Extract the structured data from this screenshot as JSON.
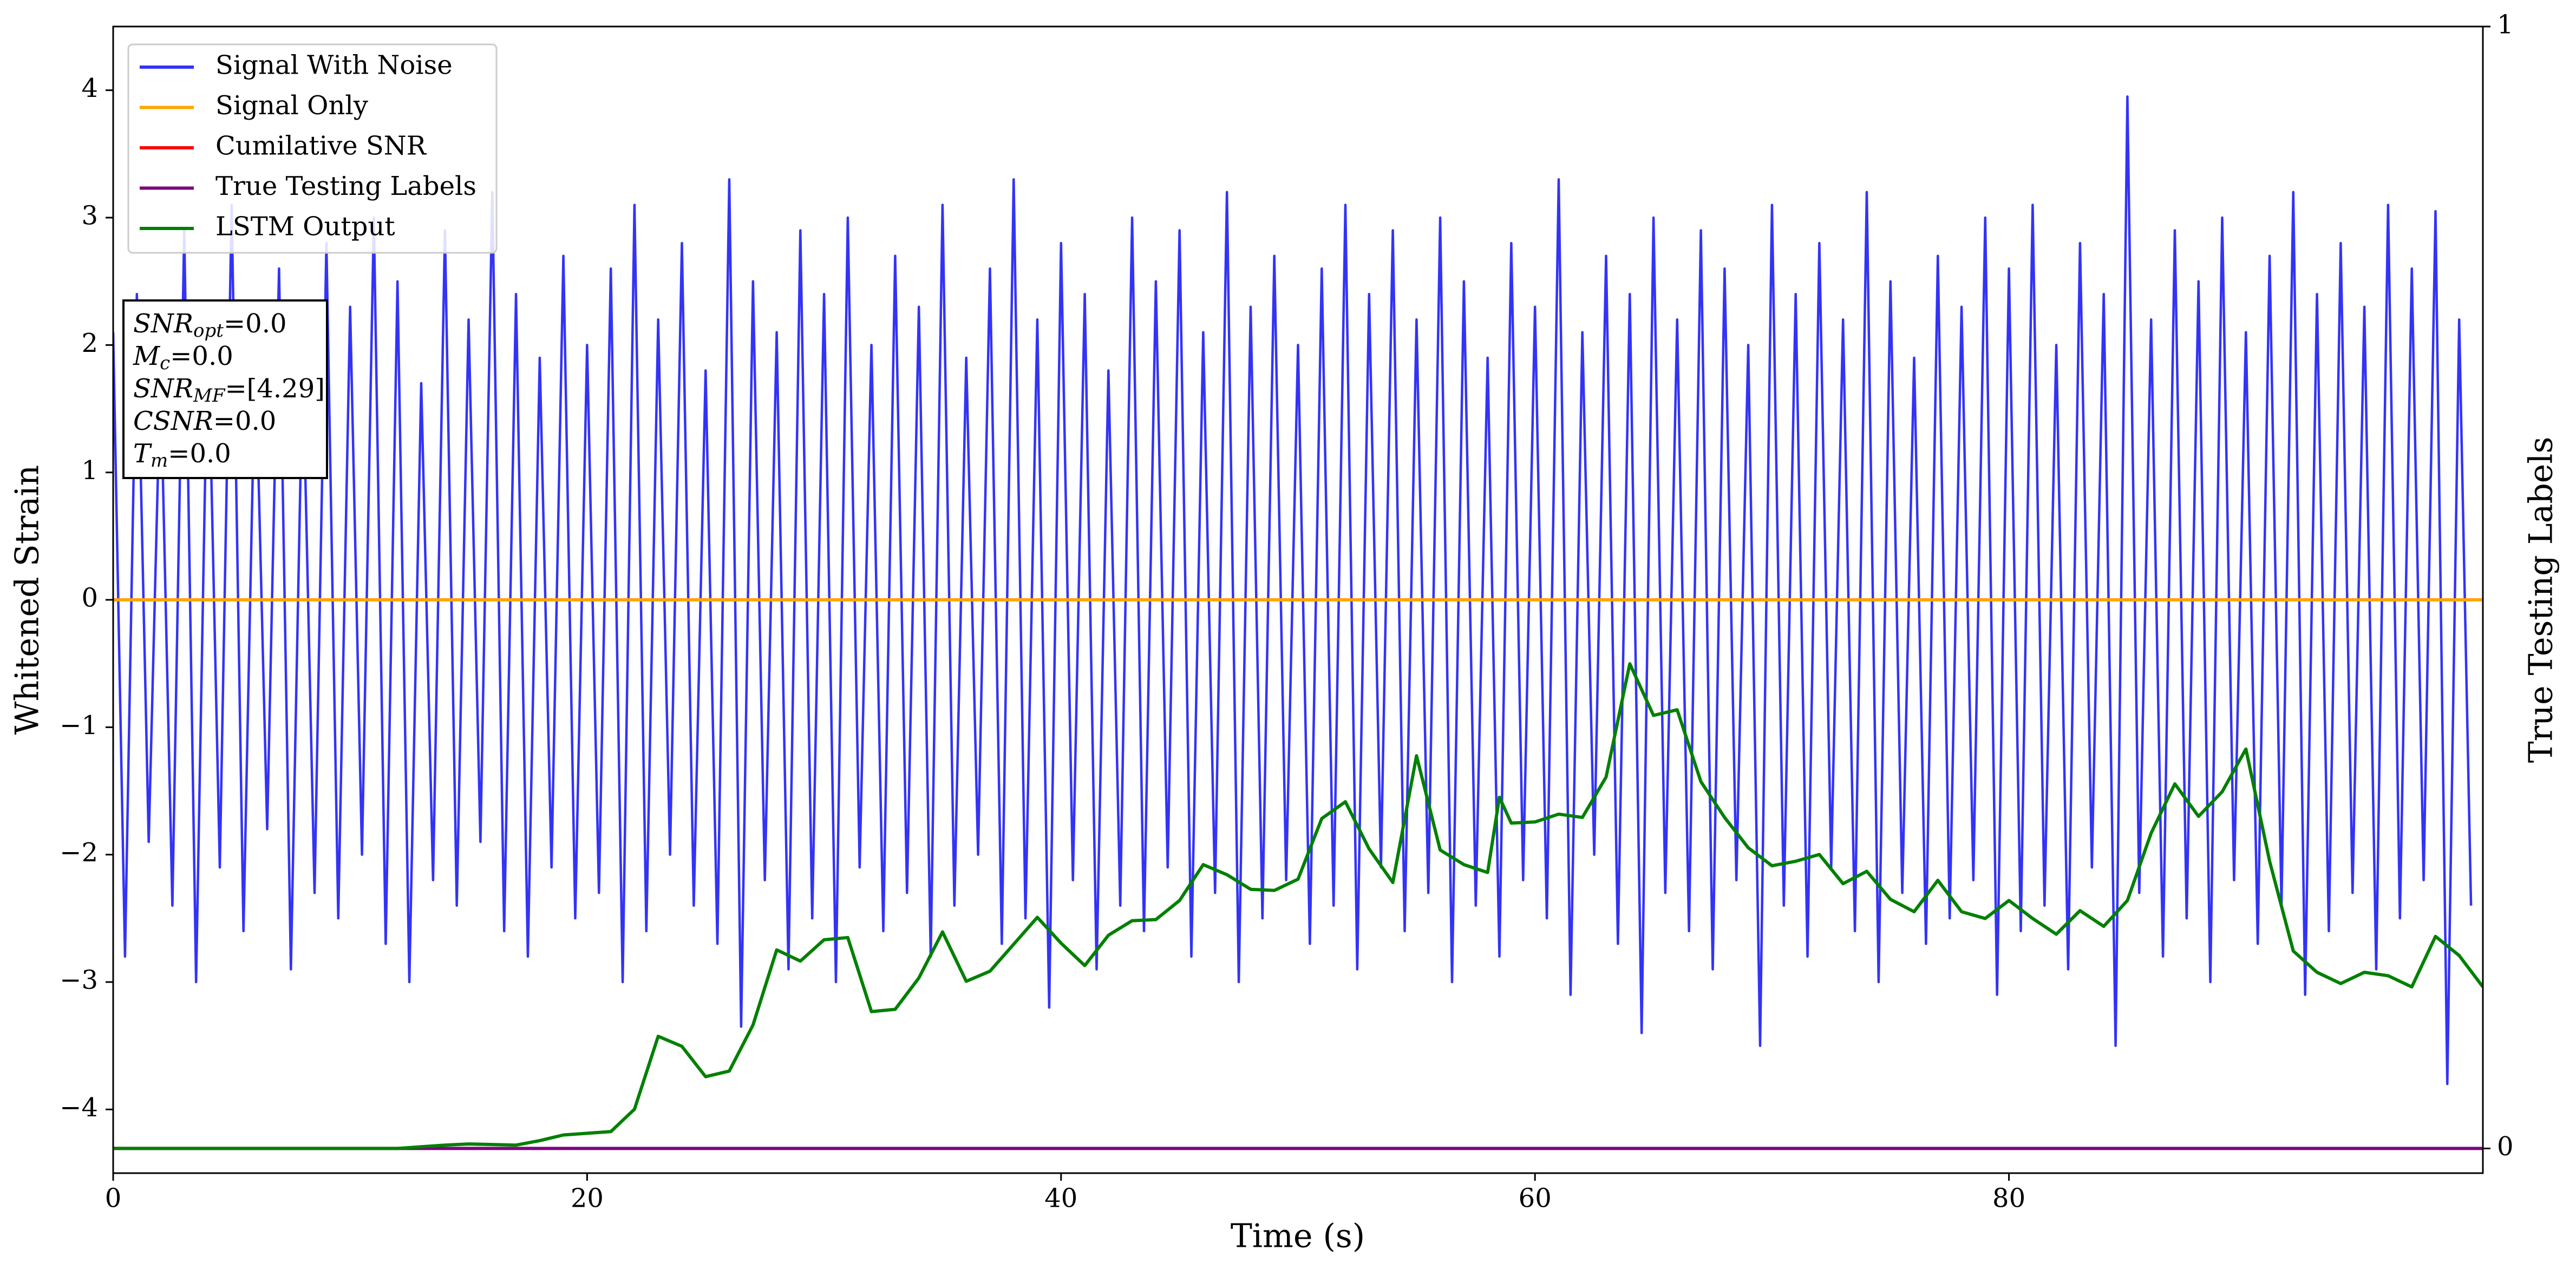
{
  "chart_data": {
    "type": "line",
    "xlabel": "Time (s)",
    "ylabel": "Whitened Strain",
    "y2label": "True Testing Labels",
    "xlim": [
      0,
      100
    ],
    "xticks": [
      0,
      20,
      40,
      60,
      80
    ],
    "ylim": [
      -4.5,
      4.5
    ],
    "yticks": [
      {
        "value": -4,
        "label": "−4"
      },
      {
        "value": -3,
        "label": "−3"
      },
      {
        "value": -2,
        "label": "−2"
      },
      {
        "value": -1,
        "label": "−1"
      },
      0,
      1,
      2,
      3,
      4
    ],
    "y2lim": [
      -0.022,
      1
    ],
    "y2ticks": [
      0,
      1
    ],
    "legend": "upper left",
    "annotation": [
      {
        "base": "SNR",
        "sub": "opt",
        "rest": "=0.0"
      },
      {
        "base": "M",
        "sub": "c",
        "rest": "=0.0"
      },
      {
        "base": "SNR",
        "sub": "MF",
        "rest": "=[4.29]"
      },
      {
        "base": "CSNR",
        "sub": "",
        "rest": "=0.0"
      },
      {
        "base": "T",
        "sub": "m",
        "rest": "=0.0"
      }
    ],
    "series": [
      {
        "name": "Signal With Noise",
        "color": "#3333f8",
        "x": [
          0,
          0.5,
          1,
          1.5,
          2,
          2.5,
          3,
          3.5,
          4,
          4.5,
          5,
          5.5,
          6,
          6.5,
          7,
          7.5,
          8,
          8.5,
          9,
          9.5,
          10,
          10.5,
          11,
          11.5,
          12,
          12.5,
          13,
          13.5,
          14,
          14.5,
          15,
          15.5,
          16,
          16.5,
          17,
          17.5,
          18,
          18.5,
          19,
          19.5,
          20,
          20.5,
          21,
          21.5,
          22,
          22.5,
          23,
          23.5,
          24,
          24.5,
          25,
          25.5,
          26,
          26.5,
          27,
          27.5,
          28,
          28.5,
          29,
          29.5,
          30,
          30.5,
          31,
          31.5,
          32,
          32.5,
          33,
          33.5,
          34,
          34.5,
          35,
          35.5,
          36,
          36.5,
          37,
          37.5,
          38,
          38.5,
          39,
          39.5,
          40,
          40.5,
          41,
          41.5,
          42,
          42.5,
          43,
          43.5,
          44,
          44.5,
          45,
          45.5,
          46,
          46.5,
          47,
          47.5,
          48,
          48.5,
          49,
          49.5,
          50,
          50.5,
          51,
          51.5,
          52,
          52.5,
          53,
          53.5,
          54,
          54.5,
          55,
          55.5,
          56,
          56.5,
          57,
          57.5,
          58,
          58.5,
          59,
          59.5,
          60,
          60.5,
          61,
          61.5,
          62,
          62.5,
          63,
          63.5,
          64,
          64.5,
          65,
          65.5,
          66,
          66.5,
          67,
          67.5,
          68,
          68.5,
          69,
          69.5,
          70,
          70.5,
          71,
          71.5,
          72,
          72.5,
          73,
          73.5,
          74,
          74.5,
          75,
          75.5,
          76,
          76.5,
          77,
          77.5,
          78,
          78.5,
          79,
          79.5,
          80,
          80.5,
          81,
          81.5,
          82,
          82.5,
          83,
          83.5,
          84,
          84.5,
          85,
          85.5,
          86,
          86.5,
          87,
          87.5,
          88,
          88.5,
          89,
          89.5,
          90,
          90.5,
          91,
          91.5,
          92,
          92.5,
          93,
          93.5,
          94,
          94.5,
          95,
          95.5,
          96,
          96.5,
          97,
          97.5,
          98,
          98.5,
          99,
          99.5
        ],
        "values": [
          2.1,
          -2.8,
          2.4,
          -1.9,
          1.8,
          -2.4,
          2.9,
          -3.0,
          2.2,
          -2.1,
          3.1,
          -2.6,
          2.0,
          -1.8,
          2.6,
          -2.9,
          1.9,
          -2.3,
          2.8,
          -2.5,
          2.3,
          -2.0,
          3.0,
          -2.7,
          2.5,
          -3.0,
          1.7,
          -2.2,
          2.9,
          -2.4,
          2.2,
          -1.9,
          3.2,
          -2.6,
          2.4,
          -2.8,
          1.9,
          -2.1,
          2.7,
          -2.5,
          2.0,
          -2.3,
          2.6,
          -3.0,
          3.1,
          -2.6,
          2.2,
          -2.0,
          2.8,
          -2.4,
          1.8,
          -2.7,
          3.3,
          -3.35,
          2.5,
          -2.2,
          2.1,
          -2.9,
          2.9,
          -2.5,
          2.4,
          -3.0,
          3.0,
          -2.1,
          2.0,
          -2.6,
          2.7,
          -2.3,
          2.3,
          -2.8,
          3.1,
          -2.4,
          1.9,
          -2.0,
          2.6,
          -2.7,
          3.3,
          -2.5,
          2.2,
          -3.2,
          2.8,
          -2.2,
          2.4,
          -2.9,
          1.8,
          -2.4,
          3.0,
          -2.6,
          2.5,
          -2.1,
          2.9,
          -2.8,
          2.1,
          -2.3,
          3.2,
          -3.0,
          2.3,
          -2.5,
          2.7,
          -2.2,
          2.0,
          -2.7,
          2.6,
          -2.4,
          3.1,
          -2.9,
          2.4,
          -2.1,
          2.9,
          -2.6,
          2.2,
          -2.3,
          3.0,
          -3.0,
          2.5,
          -2.4,
          1.9,
          -2.8,
          2.8,
          -2.2,
          2.3,
          -2.5,
          3.3,
          -3.1,
          2.1,
          -2.0,
          2.7,
          -2.7,
          2.4,
          -3.4,
          3.0,
          -2.3,
          2.2,
          -2.6,
          2.9,
          -2.9,
          2.6,
          -2.2,
          2.0,
          -3.5,
          3.1,
          -2.4,
          2.4,
          -2.8,
          2.8,
          -2.1,
          2.2,
          -2.6,
          3.2,
          -3.0,
          2.5,
          -2.3,
          1.9,
          -2.7,
          2.7,
          -2.5,
          2.3,
          -2.2,
          3.0,
          -3.1,
          2.6,
          -2.6,
          3.1,
          -2.4,
          2.0,
          -2.9,
          2.8,
          -2.1,
          2.4,
          -3.5,
          3.95,
          -2.3,
          2.2,
          -2.8,
          2.9,
          -2.5,
          2.5,
          -3.0,
          3.0,
          -2.2,
          2.1,
          -2.7,
          2.7,
          -2.4,
          3.2,
          -3.1,
          2.4,
          -2.6,
          2.8,
          -2.3,
          2.3,
          -2.9,
          3.1,
          -2.5,
          2.6,
          -2.2,
          3.05,
          -3.8,
          2.2,
          -2.4
        ]
      },
      {
        "name": "Signal Only",
        "color": "#ffa500",
        "x": [
          0,
          100
        ],
        "values": [
          0,
          0
        ]
      },
      {
        "name": "Cumilative SNR",
        "color": "#ff0000",
        "x": [
          0,
          100
        ],
        "values": [
          0,
          0
        ]
      },
      {
        "name": "True Testing Labels",
        "color": "#800080",
        "axis": "y2",
        "x": [
          0,
          100
        ],
        "values": [
          0,
          0
        ]
      },
      {
        "name": "LSTM Output",
        "color": "#008000",
        "axis": "y2",
        "x": [
          0,
          12,
          14,
          15,
          17,
          18,
          19,
          21,
          22,
          23,
          24,
          25,
          26,
          27,
          28,
          29,
          30,
          31,
          32,
          33,
          34,
          35,
          36,
          37,
          38,
          39,
          40,
          41,
          42,
          43,
          44,
          45,
          46,
          47,
          48,
          49,
          50,
          51,
          52,
          53,
          54,
          55,
          56,
          57,
          58,
          58.5,
          59,
          60,
          61,
          62,
          63,
          64,
          65,
          66,
          67,
          68,
          69,
          70,
          71,
          72,
          73,
          74,
          75,
          76,
          77,
          78,
          79,
          80,
          81,
          82,
          83,
          84,
          85,
          86,
          87,
          88,
          89,
          90,
          91,
          92,
          93,
          94,
          95,
          96,
          97,
          98,
          99,
          100
        ],
        "values": [
          0,
          0,
          0.003,
          0.004,
          0.003,
          0.007,
          0.012,
          0.015,
          0.035,
          0.1,
          0.091,
          0.064,
          0.069,
          0.11,
          0.177,
          0.167,
          0.186,
          0.188,
          0.122,
          0.124,
          0.152,
          0.193,
          0.149,
          0.158,
          0.182,
          0.206,
          0.183,
          0.163,
          0.19,
          0.203,
          0.204,
          0.221,
          0.253,
          0.244,
          0.231,
          0.23,
          0.24,
          0.294,
          0.309,
          0.267,
          0.237,
          0.35,
          0.266,
          0.253,
          0.246,
          0.313,
          0.29,
          0.291,
          0.298,
          0.295,
          0.331,
          0.432,
          0.386,
          0.391,
          0.327,
          0.295,
          0.268,
          0.252,
          0.256,
          0.262,
          0.236,
          0.247,
          0.222,
          0.211,
          0.239,
          0.211,
          0.205,
          0.221,
          0.205,
          0.191,
          0.212,
          0.198,
          0.221,
          0.281,
          0.325,
          0.296,
          0.318,
          0.356,
          0.256,
          0.176,
          0.157,
          0.147,
          0.157,
          0.154,
          0.144,
          0.189,
          0.172,
          0.144
        ]
      }
    ]
  }
}
